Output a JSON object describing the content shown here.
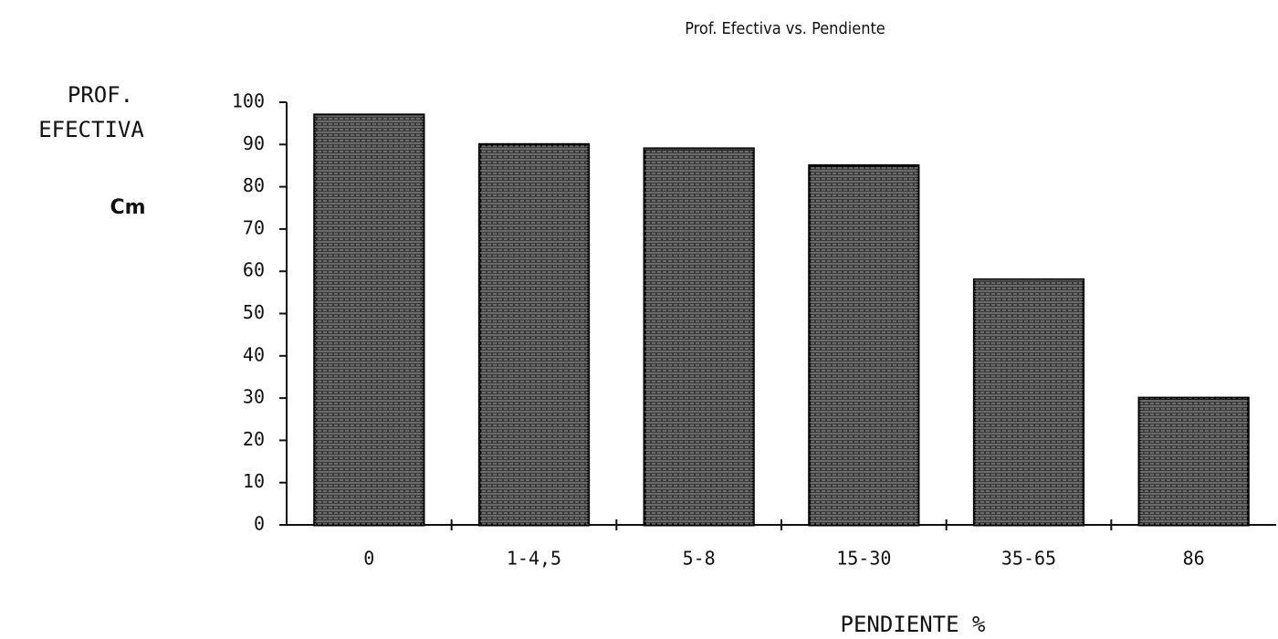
{
  "chart_data": {
    "type": "bar",
    "title": "Prof. Efectiva vs. Pendiente",
    "ylabel": [
      "PROF.",
      "EFECTIVA"
    ],
    "yunit": "Cm",
    "xlabel": "PENDIENTE %",
    "categories": [
      "0",
      "1-4,5",
      "5-8",
      "15-30",
      "35-65",
      "86"
    ],
    "values": [
      97,
      90,
      89,
      85,
      58,
      30
    ],
    "color": "#3a3a3a",
    "ylim": [
      0,
      100
    ],
    "yticks": [
      0,
      10,
      20,
      30,
      40,
      50,
      60,
      70,
      80,
      90,
      100
    ],
    "grid": false
  }
}
